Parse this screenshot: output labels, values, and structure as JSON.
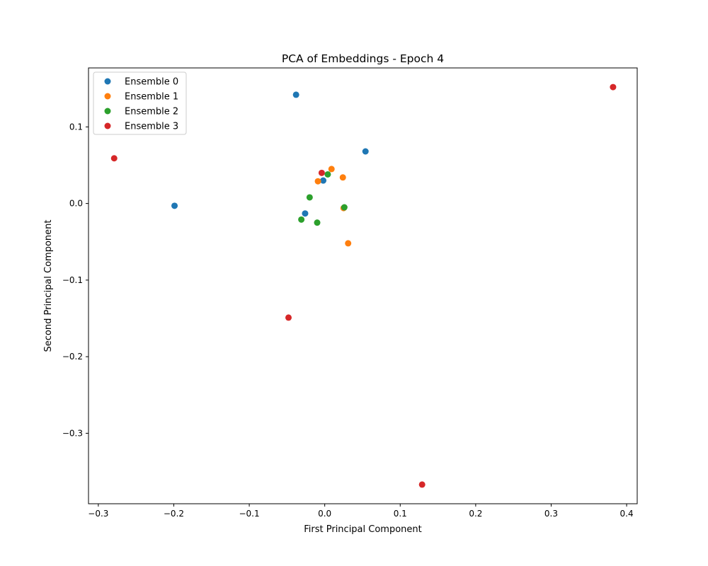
{
  "chart_data": {
    "type": "scatter",
    "title": "PCA of Embeddings - Epoch 4",
    "xlabel": "First Principal Component",
    "ylabel": "Second Principal Component",
    "xlim": [
      -0.313,
      0.414
    ],
    "ylim": [
      -0.392,
      0.177
    ],
    "xticks": [
      -0.3,
      -0.2,
      -0.1,
      0.0,
      0.1,
      0.2,
      0.3,
      0.4
    ],
    "xtick_labels": [
      "−0.3",
      "−0.2",
      "−0.1",
      "0.0",
      "0.1",
      "0.2",
      "0.3",
      "0.4"
    ],
    "yticks": [
      -0.3,
      -0.2,
      -0.1,
      0.0,
      0.1
    ],
    "ytick_labels": [
      "−0.3",
      "−0.2",
      "−0.1",
      "0.0",
      "0.1"
    ],
    "grid": false,
    "legend_position": "upper-left",
    "series": [
      {
        "name": "Ensemble 0",
        "color": "#1f77b4",
        "points": [
          {
            "x": -0.038,
            "y": 0.142
          },
          {
            "x": 0.054,
            "y": 0.068
          },
          {
            "x": -0.199,
            "y": -0.003
          },
          {
            "x": -0.002,
            "y": 0.03
          },
          {
            "x": -0.026,
            "y": -0.013
          }
        ]
      },
      {
        "name": "Ensemble 1",
        "color": "#ff7f0e",
        "points": [
          {
            "x": 0.009,
            "y": 0.045
          },
          {
            "x": -0.009,
            "y": 0.029
          },
          {
            "x": 0.024,
            "y": 0.034
          },
          {
            "x": 0.025,
            "y": -0.006
          },
          {
            "x": 0.031,
            "y": -0.052
          }
        ]
      },
      {
        "name": "Ensemble 2",
        "color": "#2ca02c",
        "points": [
          {
            "x": 0.004,
            "y": 0.038
          },
          {
            "x": -0.02,
            "y": 0.008
          },
          {
            "x": 0.026,
            "y": -0.005
          },
          {
            "x": -0.031,
            "y": -0.021
          },
          {
            "x": -0.01,
            "y": -0.025
          }
        ]
      },
      {
        "name": "Ensemble 3",
        "color": "#d62728",
        "points": [
          {
            "x": 0.382,
            "y": 0.152
          },
          {
            "x": -0.279,
            "y": 0.059
          },
          {
            "x": -0.004,
            "y": 0.04
          },
          {
            "x": -0.048,
            "y": -0.149
          },
          {
            "x": 0.129,
            "y": -0.367
          }
        ]
      }
    ]
  }
}
